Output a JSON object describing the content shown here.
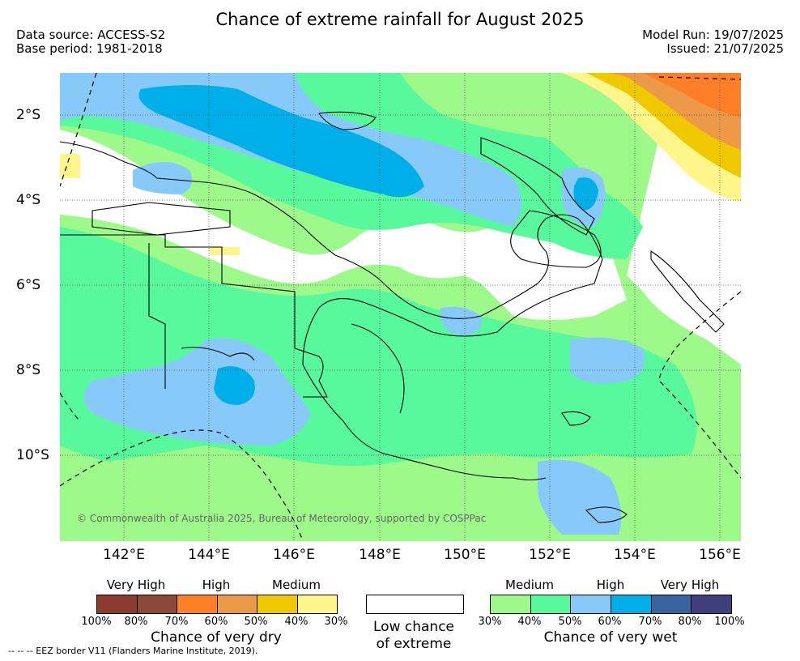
{
  "header": {
    "title": "Chance of extreme rainfall for August 2025",
    "data_source": "Data source: ACCESS-S2",
    "base_period": "Base period: 1981-2018",
    "model_run": "Model Run: 19/07/2025",
    "issued": "Issued: 21/07/2025"
  },
  "map": {
    "lat_labels": [
      "2°S",
      "4°S",
      "6°S",
      "8°S",
      "10°S"
    ],
    "lon_labels": [
      "142°E",
      "144°E",
      "146°E",
      "148°E",
      "150°E",
      "152°E",
      "154°E",
      "156°E"
    ],
    "copyright": "© Commonwealth of Australia 2025, Bureau of Meteorology, supported by COSPPac",
    "colors": {
      "wet_medium": "#9cf98a",
      "wet_high": "#58f99c",
      "wet_very_high_1": "#87caf9",
      "wet_very_high_2": "#00aeea",
      "dry_light": "#fef68a",
      "dry_mid": "#f0c800",
      "dry_high_1": "#ec9a48",
      "dry_high_2": "#fe7f27"
    }
  },
  "legend": {
    "dry": {
      "categories": [
        "Very High",
        "High",
        "Medium"
      ],
      "colors": [
        "#8a3a2f",
        "#8b4a38",
        "#fe7f27",
        "#ec9a48",
        "#f0c800",
        "#fef68a"
      ],
      "ticks": [
        "100%",
        "80%",
        "70%",
        "60%",
        "50%",
        "40%",
        "30%"
      ],
      "caption": "Chance of very dry"
    },
    "low": {
      "caption_line1": "Low chance",
      "caption_line2": "of extreme"
    },
    "wet": {
      "categories": [
        "Medium",
        "High",
        "Very High"
      ],
      "colors": [
        "#9cf98a",
        "#58f99c",
        "#87caf9",
        "#00aeea",
        "#3a64a0",
        "#3f3f7e"
      ],
      "ticks": [
        "30%",
        "40%",
        "50%",
        "60%",
        "70%",
        "80%",
        "100%"
      ],
      "caption": "Chance of very wet"
    }
  },
  "footnote": "-- -- -- EEZ border V11 (Flanders Marine Institute, 2019)."
}
